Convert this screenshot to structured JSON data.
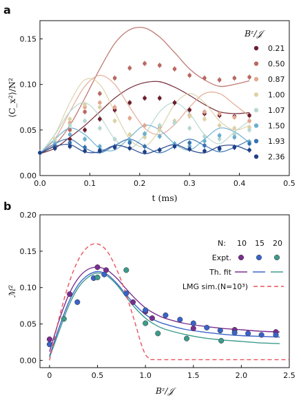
{
  "colors": {
    "axis": "#111111",
    "lmg": "#e8505b",
    "N10": "#7a2e8f",
    "N15": "#3a63c8",
    "N20": "#3d9b8a"
  },
  "chart_data": [
    {
      "type": "line",
      "panel_label": "a",
      "xlabel": "t (ms)",
      "ylabel": "⟨C_x²⟩/N²",
      "xlim": [
        0,
        0.5
      ],
      "ylim": [
        0,
        0.17
      ],
      "xticks": [
        "0.0",
        "0.1",
        "0.2",
        "0.3",
        "0.4",
        "0.5"
      ],
      "yticks": [
        "0.00",
        "0.05",
        "0.10",
        "0.15"
      ],
      "legend_title": "Bᶻ/𝒥",
      "legend_position": "right",
      "series": [
        {
          "name": "0.21",
          "color": "#6b1f2e",
          "fit": {
            "x": [
              0,
              0.03,
              0.06,
              0.09,
              0.12,
              0.15,
              0.18,
              0.21,
              0.24,
              0.27,
              0.3,
              0.33,
              0.36,
              0.39,
              0.42
            ],
            "y": [
              0.024,
              0.03,
              0.042,
              0.055,
              0.07,
              0.085,
              0.096,
              0.102,
              0.103,
              0.097,
              0.088,
              0.078,
              0.07,
              0.068,
              0.069
            ]
          },
          "points": {
            "x": [
              0,
              0.03,
              0.06,
              0.09,
              0.12,
              0.15,
              0.18,
              0.21,
              0.24,
              0.27,
              0.3,
              0.33,
              0.36,
              0.39,
              0.42
            ],
            "y": [
              0.025,
              0.03,
              0.04,
              0.05,
              0.062,
              0.072,
              0.08,
              0.085,
              0.085,
              0.08,
              0.072,
              0.068,
              0.066,
              0.065,
              0.066
            ]
          }
        },
        {
          "name": "0.50",
          "color": "#b86a62",
          "fit": {
            "x": [
              0,
              0.03,
              0.06,
              0.09,
              0.12,
              0.15,
              0.18,
              0.21,
              0.24,
              0.27,
              0.3,
              0.33,
              0.36,
              0.39,
              0.42
            ],
            "y": [
              0.024,
              0.034,
              0.055,
              0.085,
              0.117,
              0.145,
              0.16,
              0.162,
              0.152,
              0.135,
              0.117,
              0.105,
              0.098,
              0.1,
              0.104
            ]
          },
          "points": {
            "x": [
              0,
              0.03,
              0.06,
              0.09,
              0.12,
              0.15,
              0.18,
              0.21,
              0.24,
              0.27,
              0.3,
              0.33,
              0.36,
              0.39,
              0.42
            ],
            "y": [
              0.025,
              0.033,
              0.05,
              0.07,
              0.09,
              0.107,
              0.118,
              0.123,
              0.121,
              0.117,
              0.11,
              0.107,
              0.105,
              0.107,
              0.108
            ]
          }
        },
        {
          "name": "0.87",
          "color": "#e2a890",
          "fit": {
            "x": [
              0,
              0.03,
              0.06,
              0.09,
              0.12,
              0.15,
              0.18,
              0.21,
              0.24,
              0.27,
              0.3,
              0.33,
              0.36,
              0.39,
              0.42
            ],
            "y": [
              0.024,
              0.04,
              0.07,
              0.098,
              0.11,
              0.1,
              0.075,
              0.052,
              0.045,
              0.056,
              0.075,
              0.09,
              0.09,
              0.078,
              0.065
            ]
          },
          "points": {
            "x": [
              0,
              0.03,
              0.06,
              0.09,
              0.12,
              0.15,
              0.18,
              0.21,
              0.24,
              0.27,
              0.3,
              0.33,
              0.36,
              0.39,
              0.42
            ],
            "y": [
              0.025,
              0.038,
              0.058,
              0.075,
              0.08,
              0.075,
              0.063,
              0.055,
              0.053,
              0.058,
              0.066,
              0.07,
              0.068,
              0.064,
              0.06
            ]
          }
        },
        {
          "name": "1.00",
          "color": "#ddd2a8",
          "fit": {
            "x": [
              0,
              0.03,
              0.06,
              0.09,
              0.12,
              0.15,
              0.18,
              0.21,
              0.24,
              0.27,
              0.3,
              0.33,
              0.36,
              0.39,
              0.42
            ],
            "y": [
              0.024,
              0.045,
              0.08,
              0.105,
              0.1,
              0.07,
              0.04,
              0.032,
              0.05,
              0.078,
              0.09,
              0.08,
              0.06,
              0.05,
              0.055
            ]
          },
          "points": {
            "x": [
              0,
              0.03,
              0.06,
              0.09,
              0.12,
              0.15,
              0.18,
              0.21,
              0.24,
              0.27,
              0.3,
              0.33,
              0.36,
              0.39,
              0.42
            ],
            "y": [
              0.025,
              0.04,
              0.062,
              0.078,
              0.075,
              0.06,
              0.045,
              0.042,
              0.05,
              0.06,
              0.065,
              0.062,
              0.055,
              0.052,
              0.053
            ]
          }
        },
        {
          "name": "1.07",
          "color": "#b8d8d2",
          "fit": {
            "x": [
              0,
              0.03,
              0.06,
              0.09,
              0.12,
              0.15,
              0.18,
              0.21,
              0.24,
              0.27,
              0.3,
              0.33,
              0.36,
              0.39,
              0.42
            ],
            "y": [
              0.024,
              0.045,
              0.07,
              0.08,
              0.065,
              0.04,
              0.03,
              0.045,
              0.07,
              0.08,
              0.068,
              0.045,
              0.035,
              0.048,
              0.06
            ]
          },
          "points": {
            "x": [
              0,
              0.03,
              0.06,
              0.09,
              0.12,
              0.15,
              0.18,
              0.21,
              0.24,
              0.27,
              0.3,
              0.33,
              0.36,
              0.39,
              0.42
            ],
            "y": [
              0.025,
              0.038,
              0.055,
              0.06,
              0.052,
              0.04,
              0.036,
              0.045,
              0.055,
              0.058,
              0.052,
              0.043,
              0.04,
              0.045,
              0.05
            ]
          }
        },
        {
          "name": "1.50",
          "color": "#6aaed0",
          "fit": {
            "x": [
              0,
              0.03,
              0.06,
              0.09,
              0.12,
              0.15,
              0.18,
              0.21,
              0.24,
              0.27,
              0.3,
              0.33,
              0.36,
              0.39,
              0.42
            ],
            "y": [
              0.024,
              0.04,
              0.052,
              0.045,
              0.03,
              0.028,
              0.042,
              0.055,
              0.05,
              0.035,
              0.028,
              0.04,
              0.052,
              0.048,
              0.036
            ]
          },
          "points": {
            "x": [
              0,
              0.03,
              0.06,
              0.09,
              0.12,
              0.15,
              0.18,
              0.21,
              0.24,
              0.27,
              0.3,
              0.33,
              0.36,
              0.39,
              0.42
            ],
            "y": [
              0.025,
              0.035,
              0.045,
              0.04,
              0.032,
              0.031,
              0.039,
              0.046,
              0.043,
              0.035,
              0.032,
              0.038,
              0.044,
              0.042,
              0.037
            ]
          }
        },
        {
          "name": "1.93",
          "color": "#3672b0",
          "fit": {
            "x": [
              0,
              0.03,
              0.06,
              0.09,
              0.12,
              0.15,
              0.18,
              0.21,
              0.24,
              0.27,
              0.3,
              0.33,
              0.36,
              0.39,
              0.42
            ],
            "y": [
              0.024,
              0.035,
              0.04,
              0.03,
              0.025,
              0.033,
              0.04,
              0.032,
              0.025,
              0.032,
              0.04,
              0.033,
              0.026,
              0.031,
              0.039
            ]
          },
          "points": {
            "x": [
              0,
              0.03,
              0.06,
              0.09,
              0.12,
              0.15,
              0.18,
              0.21,
              0.24,
              0.27,
              0.3,
              0.33,
              0.36,
              0.39,
              0.42
            ],
            "y": [
              0.025,
              0.032,
              0.036,
              0.031,
              0.028,
              0.032,
              0.036,
              0.032,
              0.028,
              0.032,
              0.036,
              0.033,
              0.029,
              0.031,
              0.035
            ]
          }
        },
        {
          "name": "2.36",
          "color": "#1f3f86",
          "fit": {
            "x": [
              0,
              0.03,
              0.06,
              0.09,
              0.12,
              0.15,
              0.18,
              0.21,
              0.24,
              0.27,
              0.3,
              0.33,
              0.36,
              0.39,
              0.42
            ],
            "y": [
              0.024,
              0.032,
              0.034,
              0.026,
              0.026,
              0.033,
              0.03,
              0.024,
              0.029,
              0.034,
              0.028,
              0.025,
              0.032,
              0.033,
              0.027
            ]
          },
          "points": {
            "x": [
              0,
              0.03,
              0.06,
              0.09,
              0.12,
              0.15,
              0.18,
              0.21,
              0.24,
              0.27,
              0.3,
              0.33,
              0.36,
              0.39,
              0.42
            ],
            "y": [
              0.025,
              0.03,
              0.032,
              0.027,
              0.027,
              0.031,
              0.03,
              0.026,
              0.028,
              0.032,
              0.029,
              0.027,
              0.03,
              0.031,
              0.028
            ]
          }
        }
      ]
    },
    {
      "type": "scatter",
      "panel_label": "b",
      "xlabel": "Bᶻ/𝒥",
      "ylabel": "ℳ²",
      "xlim": [
        -0.1,
        2.5
      ],
      "ylim": [
        -0.01,
        0.2
      ],
      "xticks": [
        "0",
        "0.5",
        "1.0",
        "1.5",
        "2.0",
        "2.5"
      ],
      "yticks": [
        "0.00",
        "0.05",
        "0.10",
        "0.15",
        "0.20"
      ],
      "legend": {
        "position": "top-right",
        "header_label": "N:",
        "n_values": [
          "10",
          "15",
          "20"
        ],
        "expt_label": "Expt.",
        "fit_label": "Th. fit",
        "lmg_label": "LMG sim.(N=10³)"
      },
      "series": [
        {
          "name": "10",
          "color": "#7a2e8f",
          "expt": {
            "x": [
              0.0,
              0.21,
              0.5,
              0.59,
              0.87,
              1.0,
              1.07,
              1.5,
              1.93,
              2.36
            ],
            "y": [
              0.029,
              0.091,
              0.128,
              0.124,
              0.08,
              0.067,
              0.058,
              0.044,
              0.042,
              0.039
            ]
          },
          "fit": {
            "x": [
              0,
              0.1,
              0.2,
              0.3,
              0.4,
              0.5,
              0.6,
              0.7,
              0.8,
              0.9,
              1.0,
              1.1,
              1.2,
              1.4,
              1.6,
              1.8,
              2.0,
              2.2,
              2.4
            ],
            "y": [
              0.012,
              0.055,
              0.09,
              0.113,
              0.125,
              0.128,
              0.124,
              0.113,
              0.098,
              0.084,
              0.072,
              0.064,
              0.058,
              0.051,
              0.047,
              0.044,
              0.042,
              0.04,
              0.039
            ]
          }
        },
        {
          "name": "15",
          "color": "#3a63c8",
          "expt": {
            "x": [
              0.0,
              0.29,
              0.46,
              0.57,
              0.8,
              1.0,
              1.21,
              1.36,
              1.5,
              1.64,
              1.78,
              1.93,
              2.07,
              2.21,
              2.36
            ],
            "y": [
              0.022,
              0.08,
              0.113,
              0.118,
              0.092,
              0.069,
              0.062,
              0.056,
              0.051,
              0.045,
              0.041,
              0.038,
              0.037,
              0.035,
              0.035
            ]
          },
          "fit": {
            "x": [
              0,
              0.1,
              0.2,
              0.3,
              0.4,
              0.5,
              0.6,
              0.7,
              0.8,
              0.9,
              1.0,
              1.1,
              1.2,
              1.4,
              1.6,
              1.8,
              2.0,
              2.2,
              2.4
            ],
            "y": [
              0.006,
              0.045,
              0.08,
              0.104,
              0.117,
              0.122,
              0.118,
              0.106,
              0.09,
              0.075,
              0.063,
              0.055,
              0.05,
              0.043,
              0.039,
              0.036,
              0.034,
              0.033,
              0.032
            ]
          }
        },
        {
          "name": "20",
          "color": "#3d9b8a",
          "expt": {
            "x": [
              0.15,
              0.5,
              0.8,
              1.0,
              1.13,
              1.43,
              1.79
            ],
            "y": [
              0.057,
              0.114,
              0.124,
              0.051,
              0.037,
              0.03,
              0.027
            ]
          },
          "fit": {
            "x": [
              0,
              0.1,
              0.2,
              0.3,
              0.4,
              0.5,
              0.6,
              0.7,
              0.8,
              0.9,
              1.0,
              1.1,
              1.2,
              1.4,
              1.6,
              1.8,
              2.0,
              2.2,
              2.4
            ],
            "y": [
              0.004,
              0.04,
              0.075,
              0.1,
              0.114,
              0.12,
              0.116,
              0.104,
              0.087,
              0.071,
              0.058,
              0.049,
              0.043,
              0.036,
              0.031,
              0.028,
              0.026,
              0.024,
              0.023
            ]
          }
        },
        {
          "name": "LMG sim.(N=10³)",
          "color": "#e8505b",
          "dashed": true,
          "fit": {
            "x": [
              0,
              0.1,
              0.2,
              0.3,
              0.4,
              0.5,
              0.6,
              0.7,
              0.8,
              0.9,
              0.95,
              1.0,
              1.05,
              1.1,
              1.5,
              2.0,
              2.5
            ],
            "y": [
              0.0,
              0.058,
              0.105,
              0.138,
              0.156,
              0.16,
              0.15,
              0.125,
              0.09,
              0.048,
              0.025,
              0.008,
              0.002,
              0.001,
              0.001,
              0.001,
              0.001
            ]
          }
        }
      ]
    }
  ]
}
